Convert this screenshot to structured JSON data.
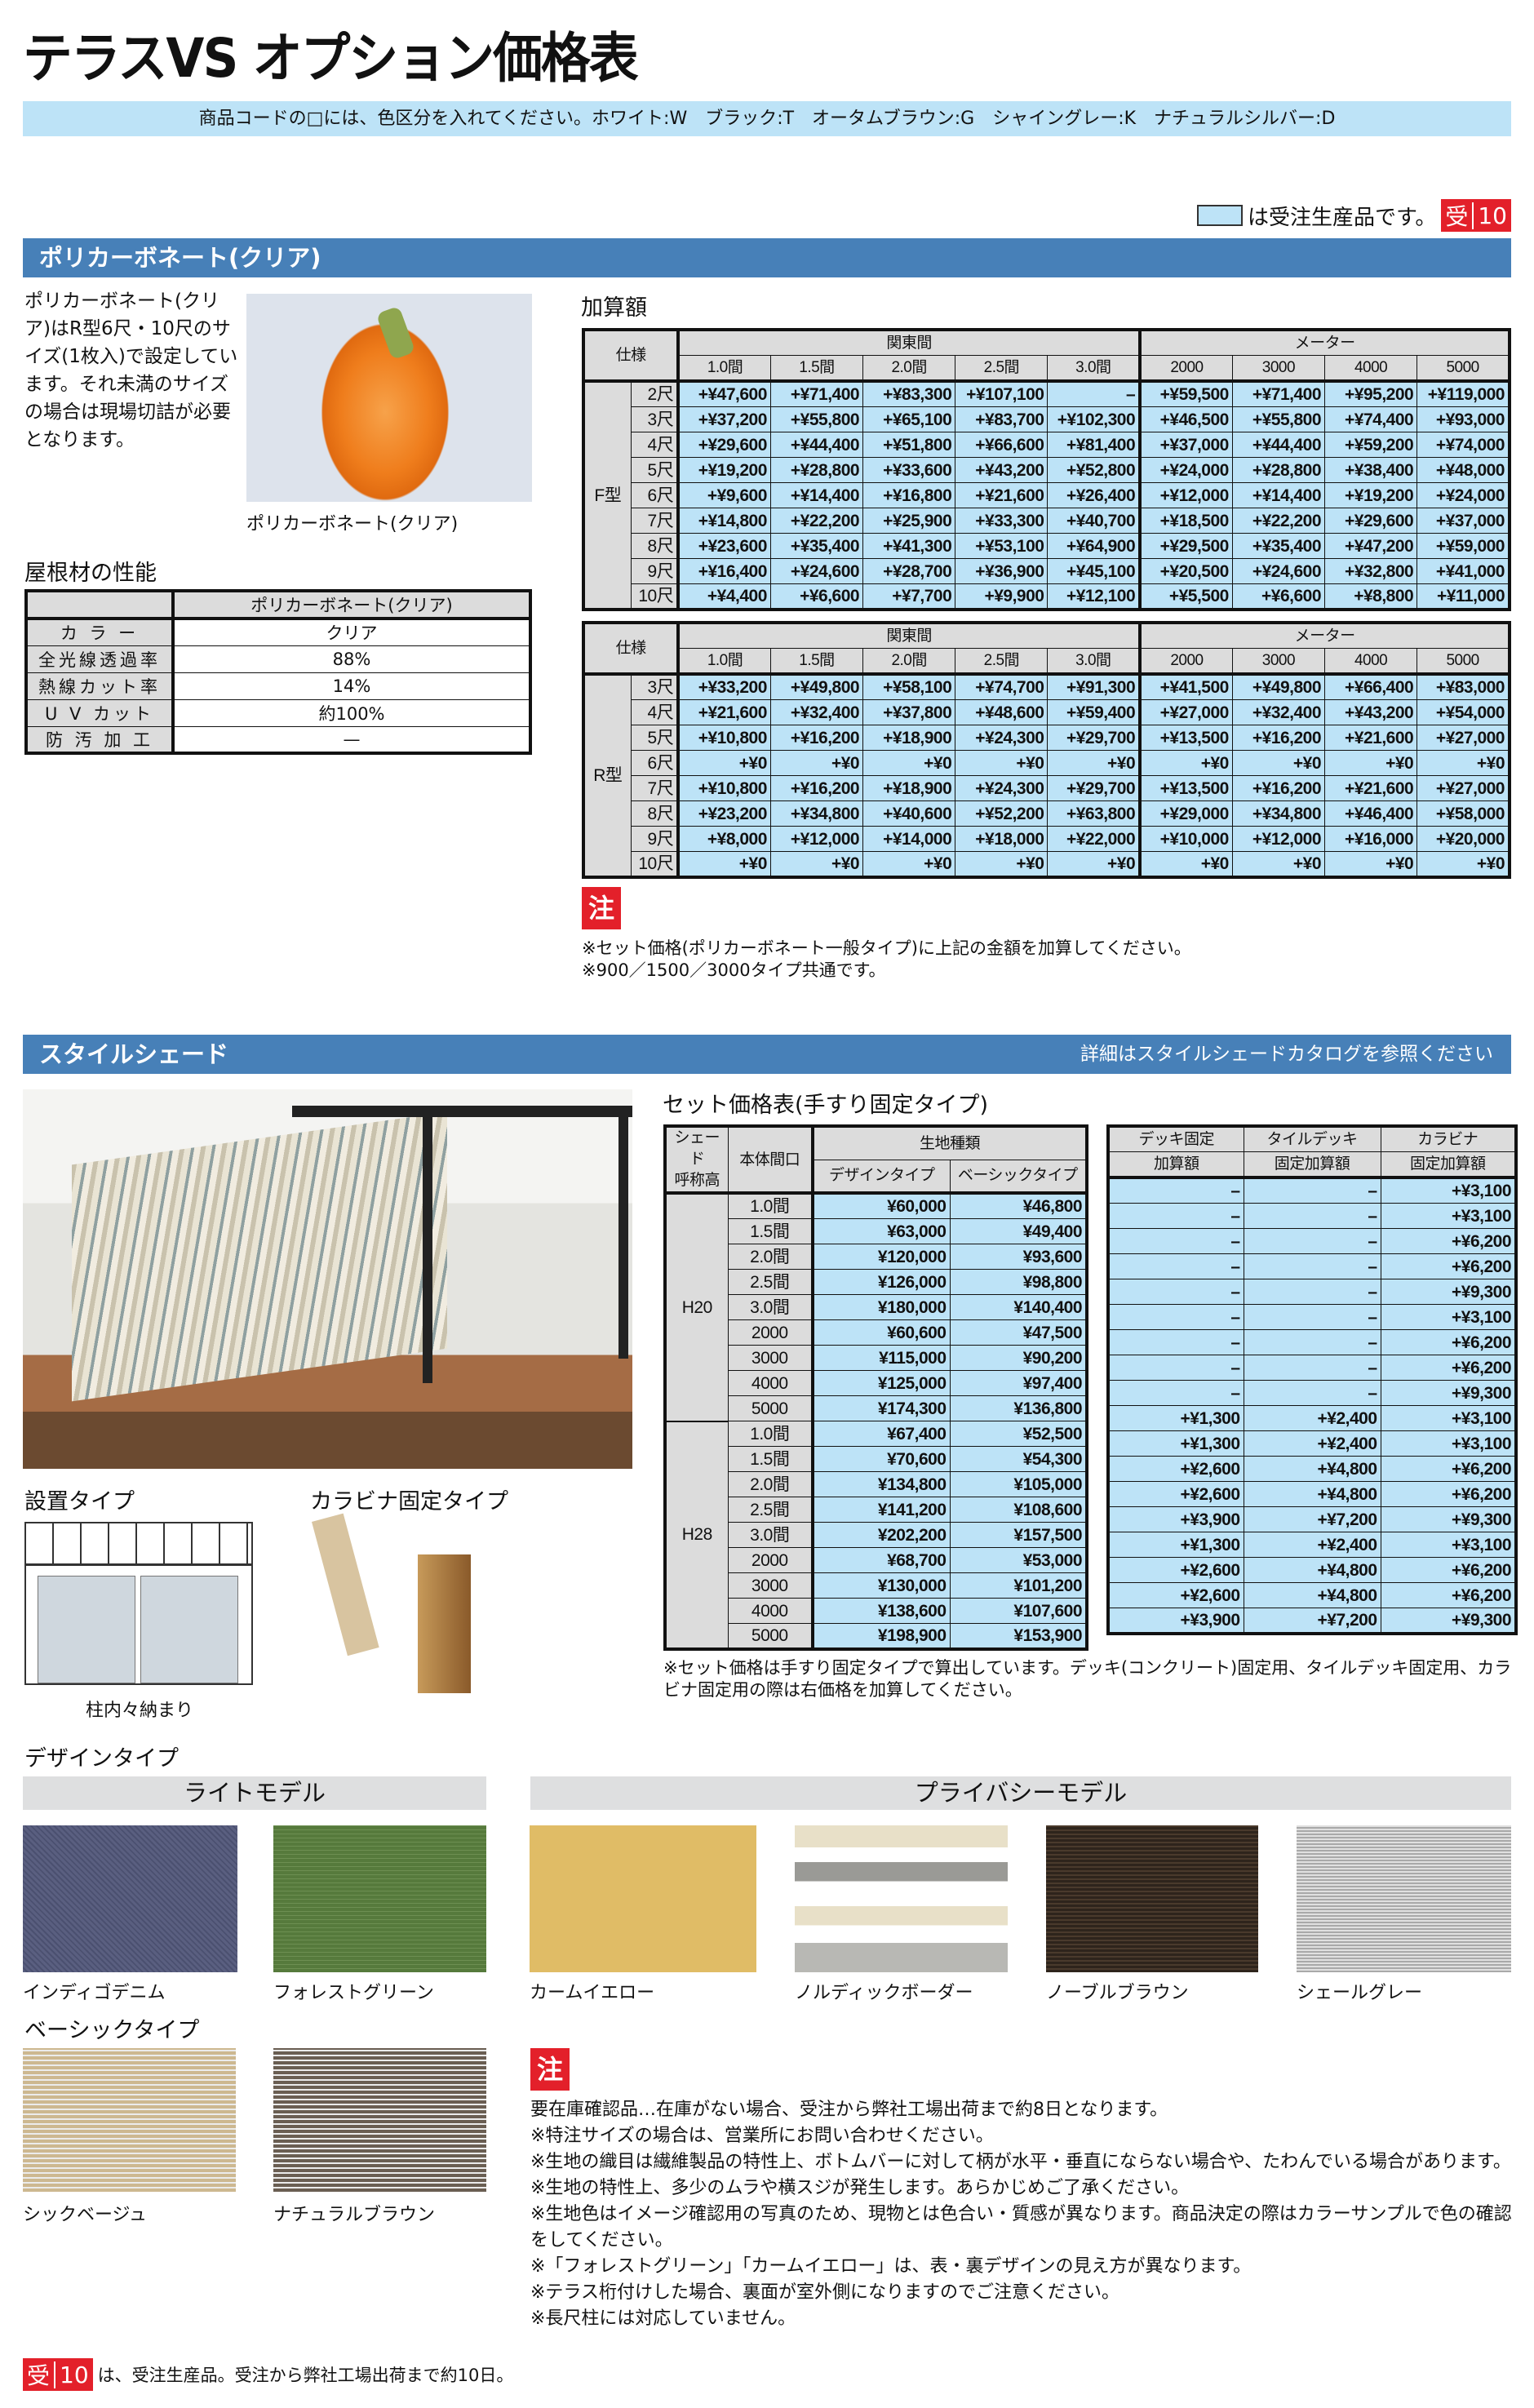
{
  "title": "テラスVS オプション価格表",
  "info_bar": "商品コードの□には、色区分を入れてください。ホワイト:W　ブラック:T　オータムブラウン:G　シャイングレー:K　ナチュラルシルバー:D",
  "legend": {
    "text": "は受注生産品です。",
    "badge_a": "受",
    "badge_b": "10",
    "color": "#bde3f7",
    "badge_color": "#e3202a"
  },
  "polycarbonate": {
    "section_title": "ポリカーボネート(クリア)",
    "description": "ポリカーボネート(クリア)はR型6尺・10尺のサイズ(1枚入)で設定しています。それ未満のサイズの場合は現場切詰が必要となります。",
    "photo_caption": "ポリカーボネート(クリア)",
    "performance": {
      "heading": "屋根材の性能",
      "column": "ポリカーボネート(クリア)",
      "rows": [
        {
          "k": "カ ラ ー",
          "v": "クリア"
        },
        {
          "k": "全光線透過率",
          "v": "88%"
        },
        {
          "k": "熱線カット率",
          "v": "14%"
        },
        {
          "k": "U V カット",
          "v": "約100%"
        },
        {
          "k": "防 汚 加 工",
          "v": "—"
        }
      ]
    },
    "addon_heading": "加算額",
    "table_headers": {
      "spec": "仕様",
      "group1": "関東間",
      "group2": "メーター",
      "cols": [
        "1.0間",
        "1.5間",
        "2.0間",
        "2.5間",
        "3.0間",
        "2000",
        "3000",
        "4000",
        "5000"
      ]
    },
    "tables": [
      {
        "type": "F型",
        "rows": [
          {
            "size": "2尺",
            "values": [
              "+¥47,600",
              "+¥71,400",
              "+¥83,300",
              "+¥107,100",
              "–",
              "+¥59,500",
              "+¥71,400",
              "+¥95,200",
              "+¥119,000"
            ]
          },
          {
            "size": "3尺",
            "values": [
              "+¥37,200",
              "+¥55,800",
              "+¥65,100",
              "+¥83,700",
              "+¥102,300",
              "+¥46,500",
              "+¥55,800",
              "+¥74,400",
              "+¥93,000"
            ]
          },
          {
            "size": "4尺",
            "values": [
              "+¥29,600",
              "+¥44,400",
              "+¥51,800",
              "+¥66,600",
              "+¥81,400",
              "+¥37,000",
              "+¥44,400",
              "+¥59,200",
              "+¥74,000"
            ]
          },
          {
            "size": "5尺",
            "values": [
              "+¥19,200",
              "+¥28,800",
              "+¥33,600",
              "+¥43,200",
              "+¥52,800",
              "+¥24,000",
              "+¥28,800",
              "+¥38,400",
              "+¥48,000"
            ]
          },
          {
            "size": "6尺",
            "values": [
              "+¥9,600",
              "+¥14,400",
              "+¥16,800",
              "+¥21,600",
              "+¥26,400",
              "+¥12,000",
              "+¥14,400",
              "+¥19,200",
              "+¥24,000"
            ]
          },
          {
            "size": "7尺",
            "values": [
              "+¥14,800",
              "+¥22,200",
              "+¥25,900",
              "+¥33,300",
              "+¥40,700",
              "+¥18,500",
              "+¥22,200",
              "+¥29,600",
              "+¥37,000"
            ]
          },
          {
            "size": "8尺",
            "values": [
              "+¥23,600",
              "+¥35,400",
              "+¥41,300",
              "+¥53,100",
              "+¥64,900",
              "+¥29,500",
              "+¥35,400",
              "+¥47,200",
              "+¥59,000"
            ]
          },
          {
            "size": "9尺",
            "values": [
              "+¥16,400",
              "+¥24,600",
              "+¥28,700",
              "+¥36,900",
              "+¥45,100",
              "+¥20,500",
              "+¥24,600",
              "+¥32,800",
              "+¥41,000"
            ]
          },
          {
            "size": "10尺",
            "values": [
              "+¥4,400",
              "+¥6,600",
              "+¥7,700",
              "+¥9,900",
              "+¥12,100",
              "+¥5,500",
              "+¥6,600",
              "+¥8,800",
              "+¥11,000"
            ]
          }
        ]
      },
      {
        "type": "R型",
        "rows": [
          {
            "size": "3尺",
            "values": [
              "+¥33,200",
              "+¥49,800",
              "+¥58,100",
              "+¥74,700",
              "+¥91,300",
              "+¥41,500",
              "+¥49,800",
              "+¥66,400",
              "+¥83,000"
            ]
          },
          {
            "size": "4尺",
            "values": [
              "+¥21,600",
              "+¥32,400",
              "+¥37,800",
              "+¥48,600",
              "+¥59,400",
              "+¥27,000",
              "+¥32,400",
              "+¥43,200",
              "+¥54,000"
            ]
          },
          {
            "size": "5尺",
            "values": [
              "+¥10,800",
              "+¥16,200",
              "+¥18,900",
              "+¥24,300",
              "+¥29,700",
              "+¥13,500",
              "+¥16,200",
              "+¥21,600",
              "+¥27,000"
            ]
          },
          {
            "size": "6尺",
            "values": [
              "+¥0",
              "+¥0",
              "+¥0",
              "+¥0",
              "+¥0",
              "+¥0",
              "+¥0",
              "+¥0",
              "+¥0"
            ]
          },
          {
            "size": "7尺",
            "values": [
              "+¥10,800",
              "+¥16,200",
              "+¥18,900",
              "+¥24,300",
              "+¥29,700",
              "+¥13,500",
              "+¥16,200",
              "+¥21,600",
              "+¥27,000"
            ]
          },
          {
            "size": "8尺",
            "values": [
              "+¥23,200",
              "+¥34,800",
              "+¥40,600",
              "+¥52,200",
              "+¥63,800",
              "+¥29,000",
              "+¥34,800",
              "+¥46,400",
              "+¥58,000"
            ]
          },
          {
            "size": "9尺",
            "values": [
              "+¥8,000",
              "+¥12,000",
              "+¥14,000",
              "+¥18,000",
              "+¥22,000",
              "+¥10,000",
              "+¥12,000",
              "+¥16,000",
              "+¥20,000"
            ]
          },
          {
            "size": "10尺",
            "values": [
              "+¥0",
              "+¥0",
              "+¥0",
              "+¥0",
              "+¥0",
              "+¥0",
              "+¥0",
              "+¥0",
              "+¥0"
            ]
          }
        ]
      }
    ],
    "note_badge": "注",
    "notes": [
      "※セット価格(ポリカーボネート一般タイプ)に上記の金額を加算してください。",
      "※900／1500／3000タイプ共通です。"
    ]
  },
  "style_shade": {
    "section_title": "スタイルシェード",
    "section_link": "詳細はスタイルシェードカタログを参照ください",
    "price_heading": "セット価格表(手すり固定タイプ)",
    "headers": {
      "shade_a": "シェード",
      "shade_b": "呼称高",
      "width": "本体間口",
      "fabric": "生地種類",
      "design": "デザインタイプ",
      "basic": "ベーシックタイプ",
      "deck_a": "デッキ固定",
      "deck_b": "加算額",
      "tile_a": "タイルデッキ",
      "tile_b": "固定加算額",
      "kara_a": "カラビナ",
      "kara_b": "固定加算額"
    },
    "groups": [
      {
        "height": "H20",
        "rows": [
          [
            "1.0間",
            "¥60,000",
            "¥46,800",
            "–",
            "–",
            "+¥3,100"
          ],
          [
            "1.5間",
            "¥63,000",
            "¥49,400",
            "–",
            "–",
            "+¥3,100"
          ],
          [
            "2.0間",
            "¥120,000",
            "¥93,600",
            "–",
            "–",
            "+¥6,200"
          ],
          [
            "2.5間",
            "¥126,000",
            "¥98,800",
            "–",
            "–",
            "+¥6,200"
          ],
          [
            "3.0間",
            "¥180,000",
            "¥140,400",
            "–",
            "–",
            "+¥9,300"
          ],
          [
            "2000",
            "¥60,600",
            "¥47,500",
            "–",
            "–",
            "+¥3,100"
          ],
          [
            "3000",
            "¥115,000",
            "¥90,200",
            "–",
            "–",
            "+¥6,200"
          ],
          [
            "4000",
            "¥125,000",
            "¥97,400",
            "–",
            "–",
            "+¥6,200"
          ],
          [
            "5000",
            "¥174,300",
            "¥136,800",
            "–",
            "–",
            "+¥9,300"
          ]
        ]
      },
      {
        "height": "H28",
        "rows": [
          [
            "1.0間",
            "¥67,400",
            "¥52,500",
            "+¥1,300",
            "+¥2,400",
            "+¥3,100"
          ],
          [
            "1.5間",
            "¥70,600",
            "¥54,300",
            "+¥1,300",
            "+¥2,400",
            "+¥3,100"
          ],
          [
            "2.0間",
            "¥134,800",
            "¥105,000",
            "+¥2,600",
            "+¥4,800",
            "+¥6,200"
          ],
          [
            "2.5間",
            "¥141,200",
            "¥108,600",
            "+¥2,600",
            "+¥4,800",
            "+¥6,200"
          ],
          [
            "3.0間",
            "¥202,200",
            "¥157,500",
            "+¥3,900",
            "+¥7,200",
            "+¥9,300"
          ],
          [
            "2000",
            "¥68,700",
            "¥53,000",
            "+¥1,300",
            "+¥2,400",
            "+¥3,100"
          ],
          [
            "3000",
            "¥130,000",
            "¥101,200",
            "+¥2,600",
            "+¥4,800",
            "+¥6,200"
          ],
          [
            "4000",
            "¥138,600",
            "¥107,600",
            "+¥2,600",
            "+¥4,800",
            "+¥6,200"
          ],
          [
            "5000",
            "¥198,900",
            "¥153,900",
            "+¥3,900",
            "+¥7,200",
            "+¥9,300"
          ]
        ]
      }
    ],
    "table_note": "※セット価格は手すり固定タイプで算出しています。デッキ(コンクリート)固定用、タイルデッキ固定用、カラビナ固定用の際は右価格を加算してください。",
    "install_heading": "設置タイプ",
    "install_caption": "柱内々納まり",
    "karabiner_heading": "カラビナ固定タイプ",
    "design_heading": "デザインタイプ",
    "light_model": "ライトモデル",
    "privacy_model": "プライバシーモデル",
    "design_swatches": [
      {
        "name": "インディゴデニム",
        "color": "#5a5f80"
      },
      {
        "name": "フォレストグリーン",
        "color": "#567a3c"
      },
      {
        "name": "カームイエロー",
        "color": "#e0bc66"
      },
      {
        "name": "ノルディックボーダー",
        "color": "#e8e0c8"
      },
      {
        "name": "ノーブルブラウン",
        "color": "#2e241c"
      },
      {
        "name": "シェールグレー",
        "color": "#a9a9a9"
      }
    ],
    "basic_heading": "ベーシックタイプ",
    "basic_swatches": [
      {
        "name": "シックベージュ",
        "color": "#cdb890"
      },
      {
        "name": "ナチュラルブラウン",
        "color": "#6a5e52"
      }
    ],
    "note_badge": "注",
    "notes": [
      "要在庫確認品…在庫がない場合、受注から弊社工場出荷まで約8日となります。",
      "※特注サイズの場合は、営業所にお問い合わせください。",
      "※生地の織目は繊維製品の特性上、ボトムバーに対して柄が水平・垂直にならない場合や、たわんでいる場合があります。",
      "※生地の特性上、多少のムラや横スジが発生します。あらかじめご了承ください。",
      "※生地色はイメージ確認用の写真のため、現物とは色合い・質感が異なります。商品決定の際はカラーサンプルで色の確認をしてください。",
      "※「フォレストグリーン」「カームイエロー」は、表・裏デザインの見え方が異なります。",
      "※テラス桁付けした場合、裏面が室外側になりますのでご注意ください。",
      "※長尺柱には対応していません。"
    ]
  },
  "footer": {
    "badge_a": "受",
    "badge_b": "10",
    "text": "は、受注生産品。受注から弊社工場出荷まで約10日。"
  }
}
